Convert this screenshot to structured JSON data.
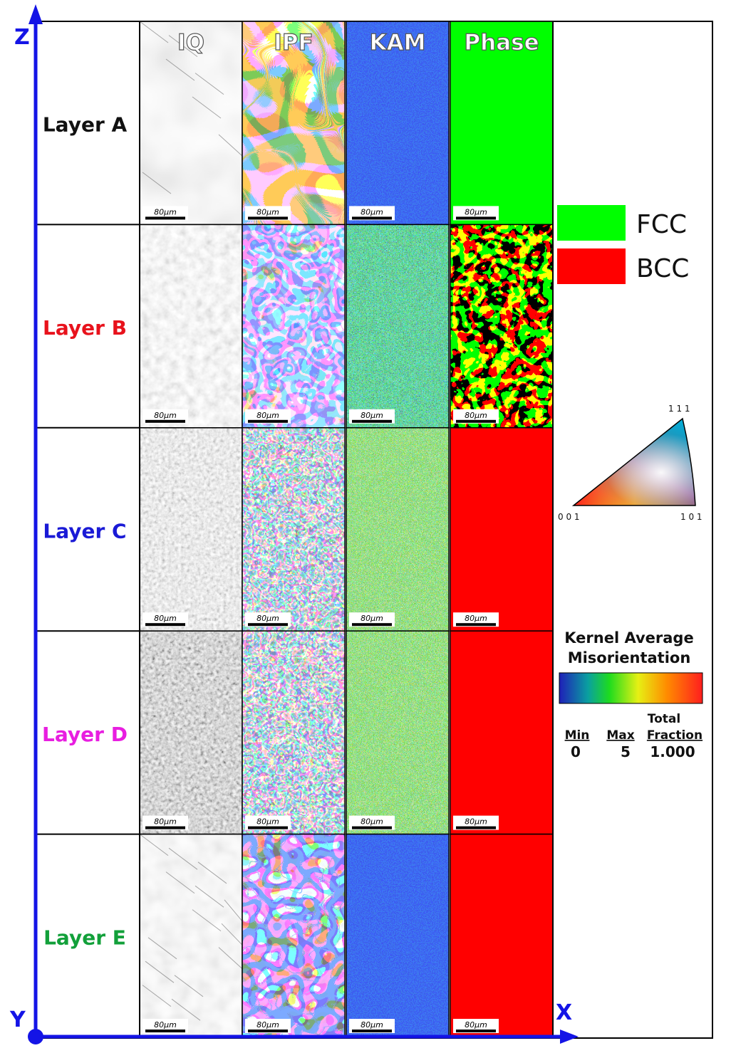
{
  "axes": {
    "z": "Z",
    "x": "X",
    "y": "Y"
  },
  "columns": [
    "IQ",
    "IPF",
    "KAM",
    "Phase"
  ],
  "layers": [
    {
      "label": "Layer A",
      "color": "#111111",
      "phase": "FCC",
      "texture": "coarse",
      "kam": "low"
    },
    {
      "label": "Layer B",
      "color": "#e8121c",
      "phase": "mixed",
      "texture": "mixed",
      "kam": "mid"
    },
    {
      "label": "Layer C",
      "color": "#1a1ad6",
      "phase": "BCC",
      "texture": "fine",
      "kam": "high"
    },
    {
      "label": "Layer D",
      "color": "#e81ee0",
      "phase": "BCC",
      "texture": "fine",
      "kam": "high"
    },
    {
      "label": "Layer E",
      "color": "#12a03a",
      "phase": "BCC",
      "texture": "medium",
      "kam": "low"
    }
  ],
  "scale_bar": "80μm",
  "phase_legend": [
    {
      "name": "FCC",
      "color": "#00ff00"
    },
    {
      "name": "BCC",
      "color": "#ff0000"
    }
  ],
  "ipf_triangle": {
    "top": "1 1 1",
    "left": "0 0 1",
    "right": "1 0 1"
  },
  "kam_legend": {
    "title_line1": "Kernel Average",
    "title_line2": "Misorientation",
    "min_label": "Min",
    "max_label": "Max",
    "total_label_line1": "Total",
    "total_label_line2": "Fraction",
    "min_value": "0",
    "max_value": "5",
    "total_value": "1.000"
  }
}
